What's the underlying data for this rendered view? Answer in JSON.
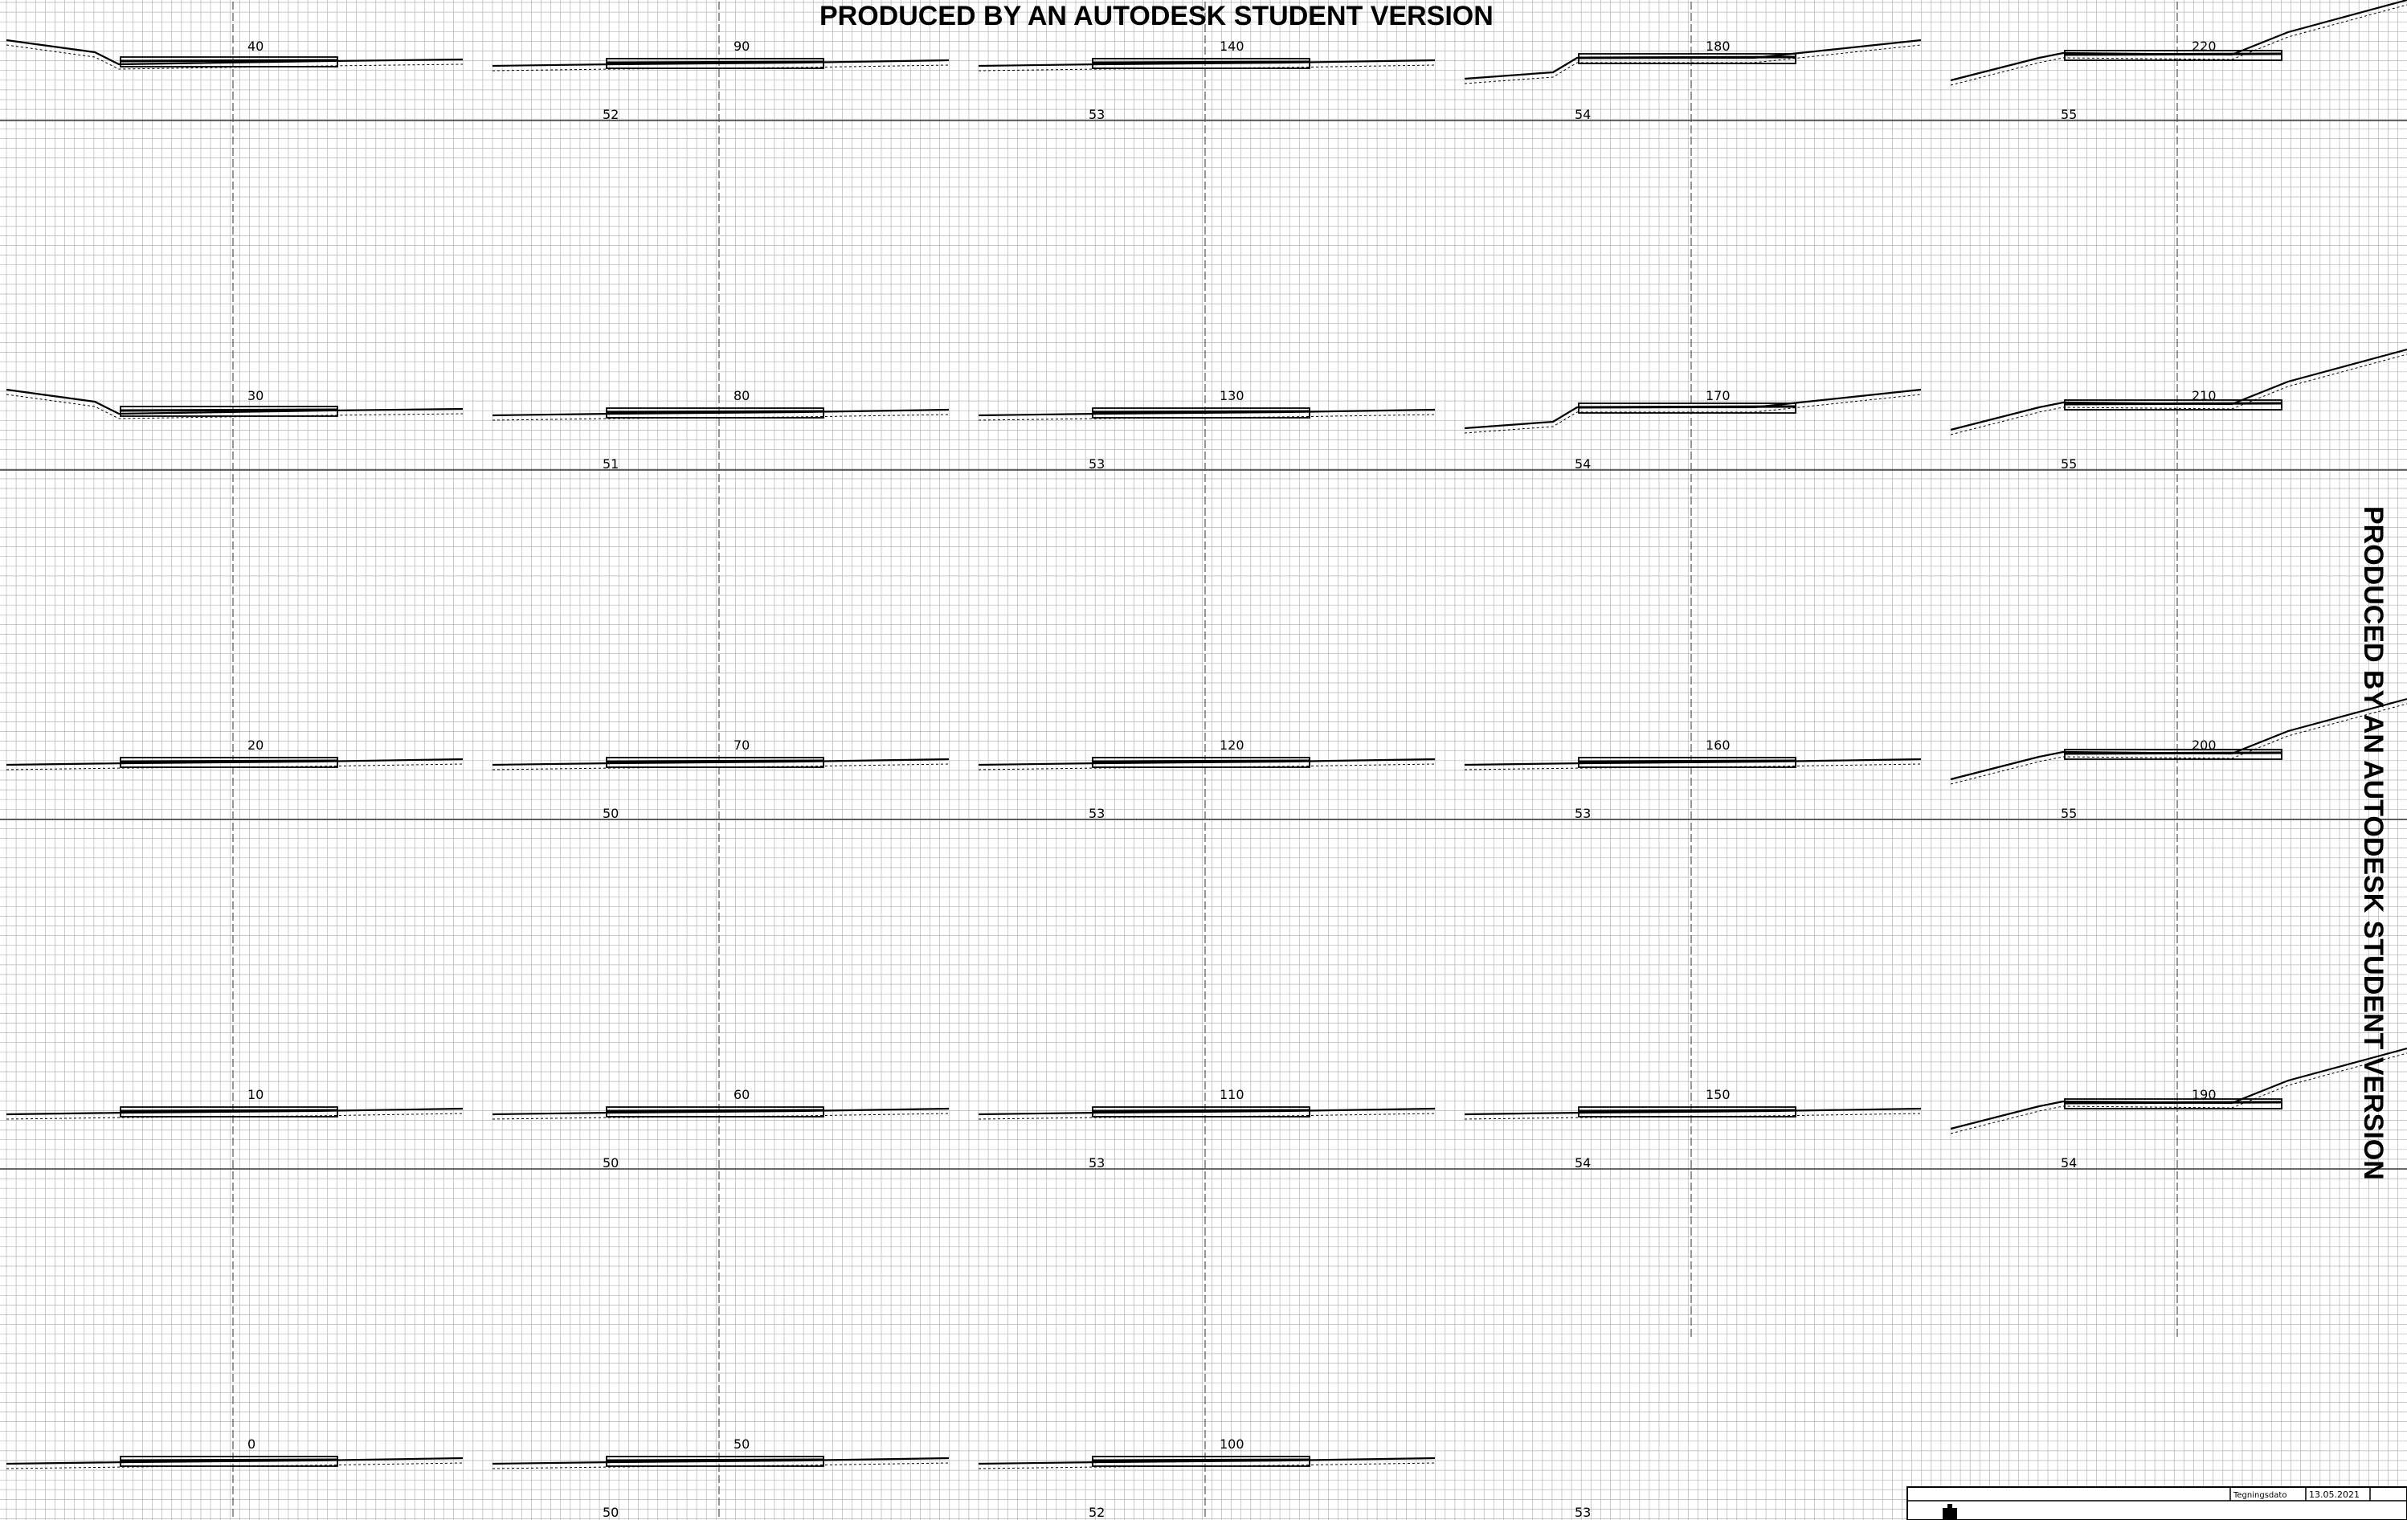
{
  "watermark": {
    "top": "PRODUCED BY AN AUTODESK STUDENT VERSION",
    "right": "PRODUCED BY AN AUTODESK STUDENT VERSION"
  },
  "title_block": {
    "date_label": "Tegningsdato",
    "date_value": "13.05.2021"
  },
  "sections": [
    {
      "station": "40",
      "datum": "",
      "col": 0,
      "row": 0,
      "profile": "steep-left"
    },
    {
      "station": "90",
      "datum": "52",
      "col": 1,
      "row": 0,
      "profile": "flat"
    },
    {
      "station": "140",
      "datum": "53",
      "col": 2,
      "row": 0,
      "profile": "flat"
    },
    {
      "station": "180",
      "datum": "54",
      "col": 3,
      "row": 0,
      "profile": "step-left"
    },
    {
      "station": "220",
      "datum": "55",
      "col": 4,
      "row": 0,
      "profile": "rise-both"
    },
    {
      "station": "30",
      "datum": "",
      "col": 0,
      "row": 1,
      "profile": "steep-left"
    },
    {
      "station": "80",
      "datum": "51",
      "col": 1,
      "row": 1,
      "profile": "flat"
    },
    {
      "station": "130",
      "datum": "53",
      "col": 2,
      "row": 1,
      "profile": "flat"
    },
    {
      "station": "170",
      "datum": "54",
      "col": 3,
      "row": 1,
      "profile": "step-left"
    },
    {
      "station": "210",
      "datum": "55",
      "col": 4,
      "row": 1,
      "profile": "rise-both"
    },
    {
      "station": "20",
      "datum": "",
      "col": 0,
      "row": 2,
      "profile": "flat"
    },
    {
      "station": "70",
      "datum": "50",
      "col": 1,
      "row": 2,
      "profile": "flat"
    },
    {
      "station": "120",
      "datum": "53",
      "col": 2,
      "row": 2,
      "profile": "flat"
    },
    {
      "station": "160",
      "datum": "53",
      "col": 3,
      "row": 2,
      "profile": "flat"
    },
    {
      "station": "200",
      "datum": "55",
      "col": 4,
      "row": 2,
      "profile": "rise-both"
    },
    {
      "station": "10",
      "datum": "",
      "col": 0,
      "row": 3,
      "profile": "flat"
    },
    {
      "station": "60",
      "datum": "50",
      "col": 1,
      "row": 3,
      "profile": "flat"
    },
    {
      "station": "110",
      "datum": "53",
      "col": 2,
      "row": 3,
      "profile": "flat"
    },
    {
      "station": "150",
      "datum": "54",
      "col": 3,
      "row": 3,
      "profile": "flat"
    },
    {
      "station": "190",
      "datum": "54",
      "col": 4,
      "row": 3,
      "profile": "rise-both"
    },
    {
      "station": "0",
      "datum": "",
      "col": 0,
      "row": 4,
      "profile": "flat"
    },
    {
      "station": "50",
      "datum": "50",
      "col": 1,
      "row": 4,
      "profile": "flat"
    },
    {
      "station": "100",
      "datum": "52",
      "col": 2,
      "row": 4,
      "profile": "flat"
    }
  ],
  "extra_datums": [
    {
      "text": "53",
      "col": 3,
      "row": 4
    }
  ]
}
